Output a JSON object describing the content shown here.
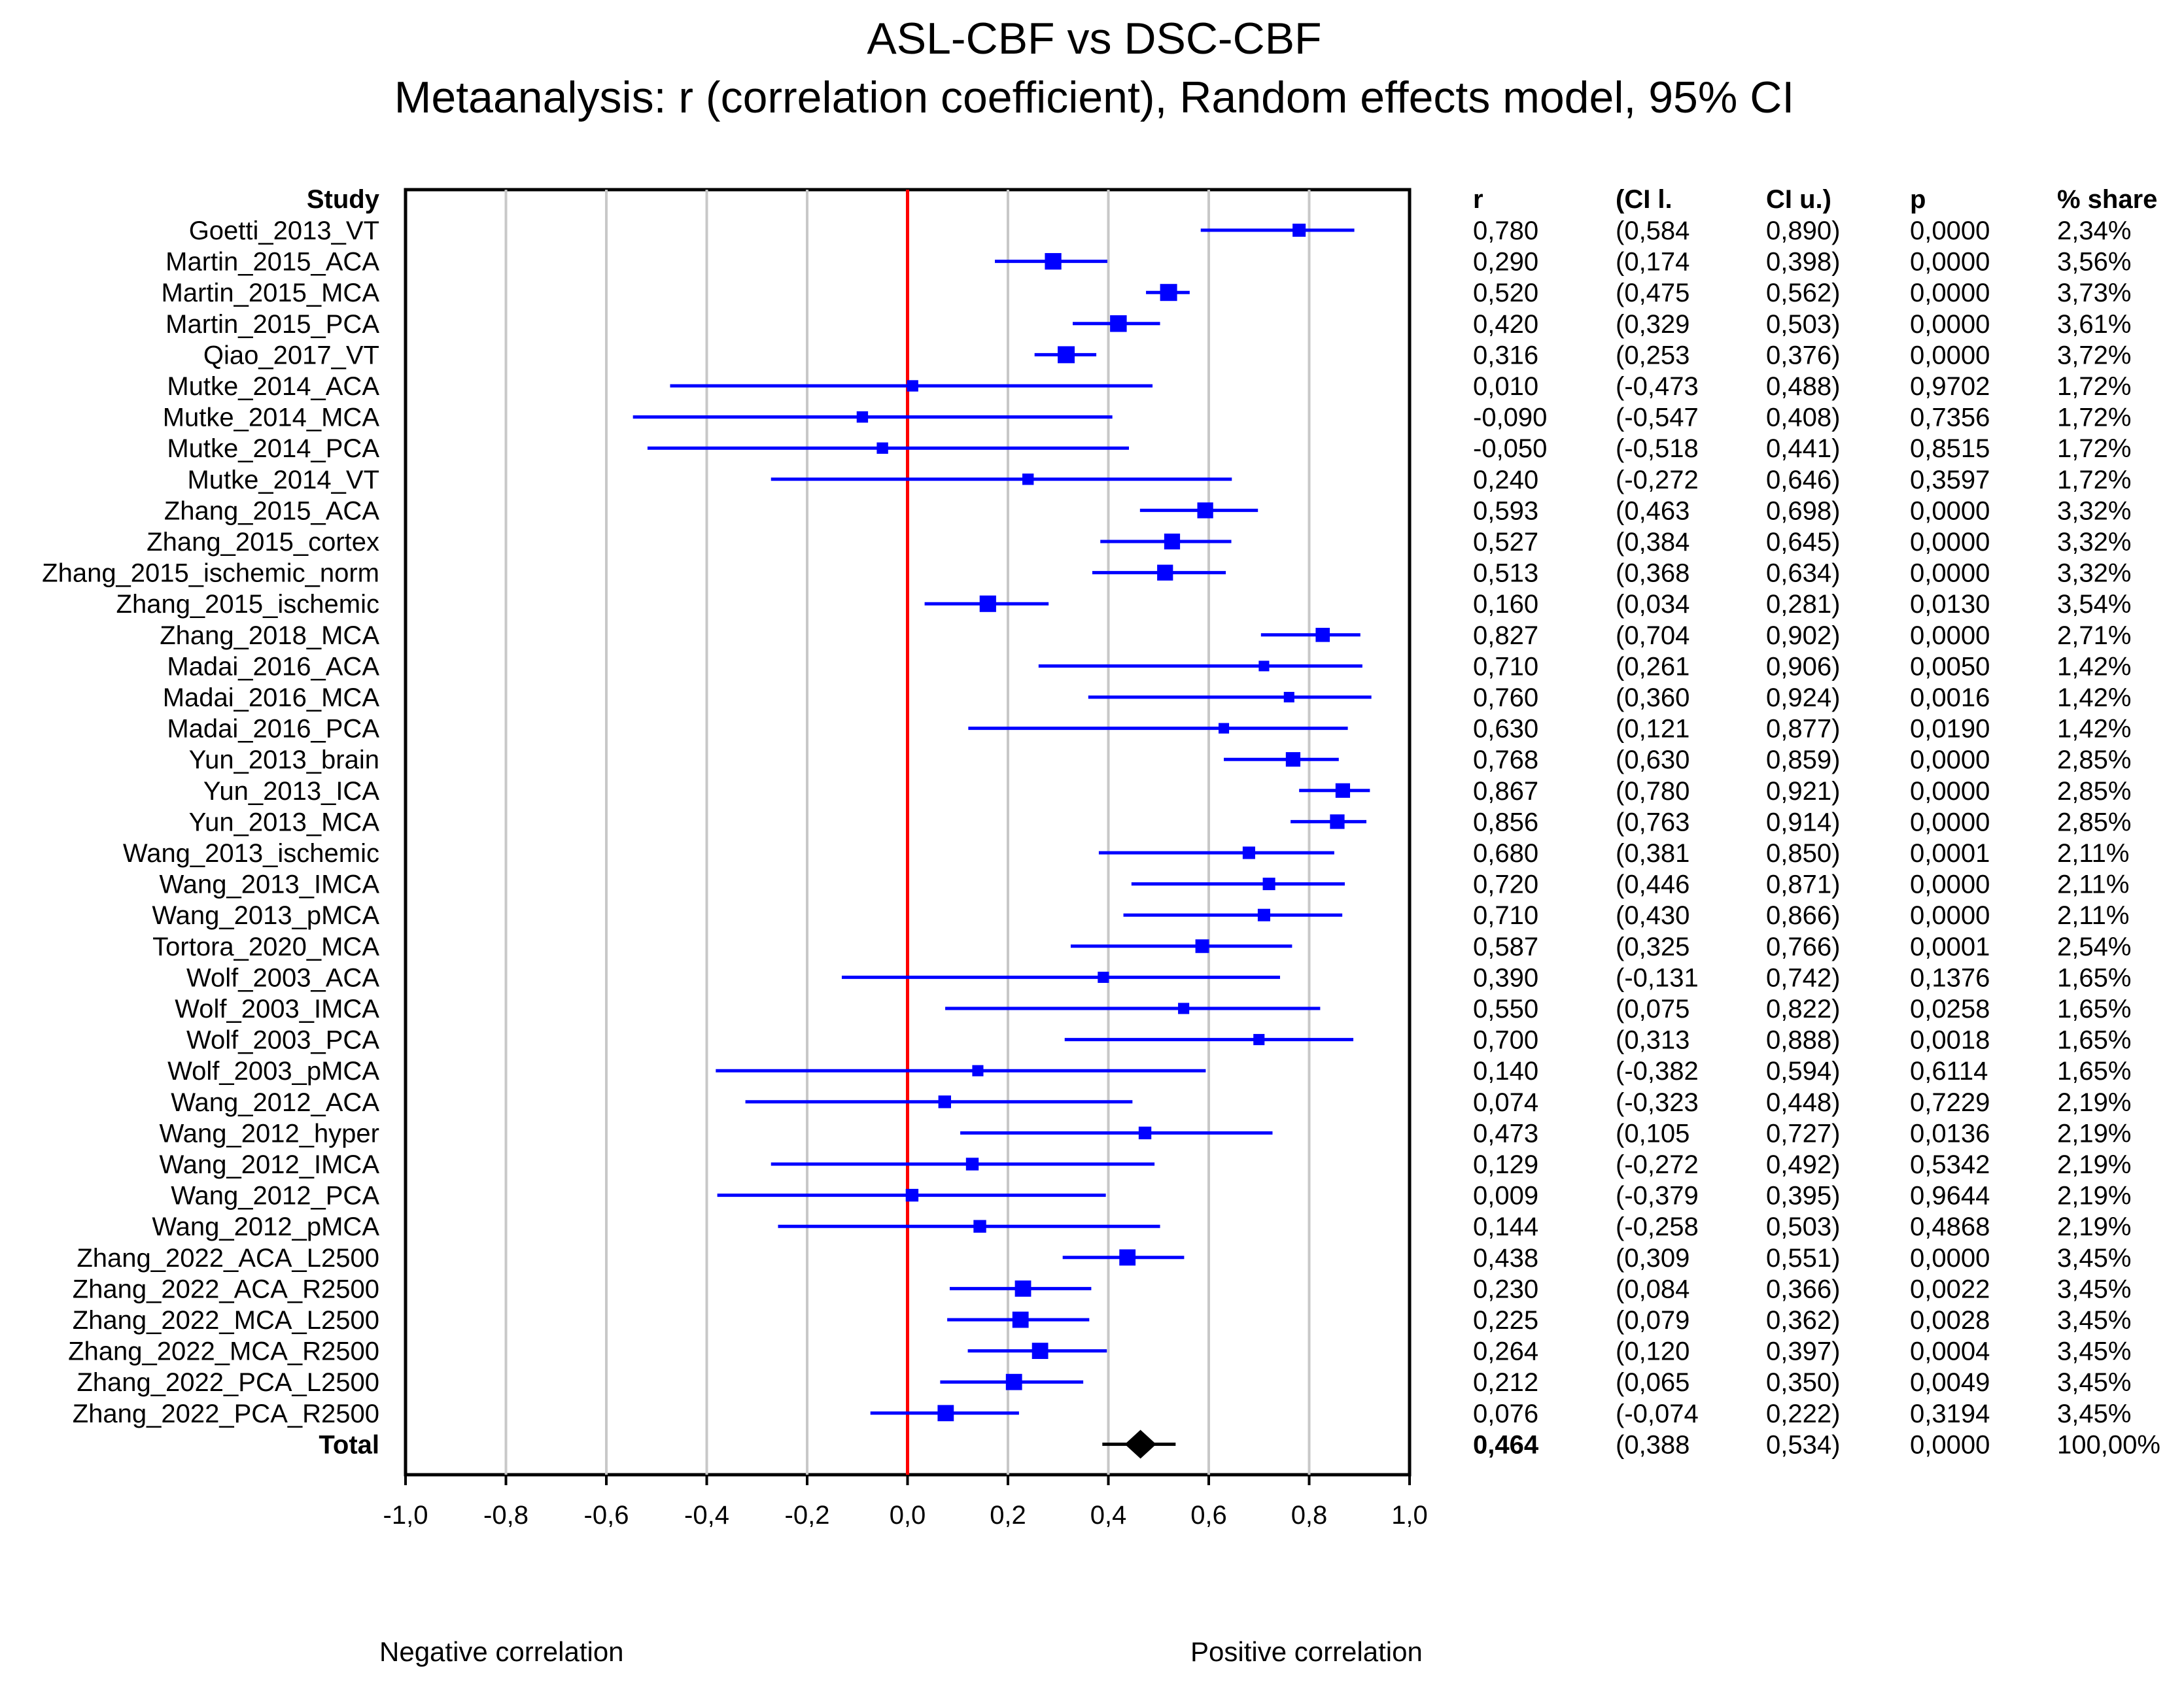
{
  "chart_data": {
    "type": "forest",
    "title": "ASL-CBF vs DSC-CBF",
    "subtitle": "Metaanalysis: r (correlation coefficient), Random effects model, 95% CI",
    "study_header": "Study",
    "column_headers": [
      "r",
      "(CI l.",
      "CI u.)",
      "p",
      "% share"
    ],
    "xlim": [
      -1.0,
      1.0
    ],
    "x_ticks": [
      "-1,0",
      "-0,8",
      "-0,6",
      "-0,4",
      "-0,2",
      "0,0",
      "0,2",
      "0,4",
      "0,6",
      "0,8",
      "1,0"
    ],
    "x_tick_values": [
      -1.0,
      -0.8,
      -0.6,
      -0.4,
      -0.2,
      0.0,
      0.2,
      0.4,
      0.6,
      0.8,
      1.0
    ],
    "reference_line": 0.0,
    "negative_label": "Negative correlation",
    "positive_label": "Positive correlation",
    "colors": {
      "ci": "#0000ff",
      "marker": "#0000ff",
      "reference": "#ff0000",
      "grid": "#c8c8c8",
      "total": "#000000"
    },
    "studies": [
      {
        "name": "Goetti_2013_VT",
        "r": 0.78,
        "lo": 0.584,
        "hi": 0.89,
        "share": 2.34,
        "r_txt": "0,780",
        "lo_txt": "(0,584",
        "hi_txt": "0,890)",
        "p_txt": "0,0000",
        "share_txt": "2,34%"
      },
      {
        "name": "Martin_2015_ACA",
        "r": 0.29,
        "lo": 0.174,
        "hi": 0.398,
        "share": 3.56,
        "r_txt": "0,290",
        "lo_txt": "(0,174",
        "hi_txt": "0,398)",
        "p_txt": "0,0000",
        "share_txt": "3,56%"
      },
      {
        "name": "Martin_2015_MCA",
        "r": 0.52,
        "lo": 0.475,
        "hi": 0.562,
        "share": 3.73,
        "r_txt": "0,520",
        "lo_txt": "(0,475",
        "hi_txt": "0,562)",
        "p_txt": "0,0000",
        "share_txt": "3,73%"
      },
      {
        "name": "Martin_2015_PCA",
        "r": 0.42,
        "lo": 0.329,
        "hi": 0.503,
        "share": 3.61,
        "r_txt": "0,420",
        "lo_txt": "(0,329",
        "hi_txt": "0,503)",
        "p_txt": "0,0000",
        "share_txt": "3,61%"
      },
      {
        "name": "Qiao_2017_VT",
        "r": 0.316,
        "lo": 0.253,
        "hi": 0.376,
        "share": 3.72,
        "r_txt": "0,316",
        "lo_txt": "(0,253",
        "hi_txt": "0,376)",
        "p_txt": "0,0000",
        "share_txt": "3,72%"
      },
      {
        "name": "Mutke_2014_ACA",
        "r": 0.01,
        "lo": -0.473,
        "hi": 0.488,
        "share": 1.72,
        "r_txt": "0,010",
        "lo_txt": "(-0,473",
        "hi_txt": "0,488)",
        "p_txt": "0,9702",
        "share_txt": "1,72%"
      },
      {
        "name": "Mutke_2014_MCA",
        "r": -0.09,
        "lo": -0.547,
        "hi": 0.408,
        "share": 1.72,
        "r_txt": "-0,090",
        "lo_txt": "(-0,547",
        "hi_txt": "0,408)",
        "p_txt": "0,7356",
        "share_txt": "1,72%"
      },
      {
        "name": "Mutke_2014_PCA",
        "r": -0.05,
        "lo": -0.518,
        "hi": 0.441,
        "share": 1.72,
        "r_txt": "-0,050",
        "lo_txt": "(-0,518",
        "hi_txt": "0,441)",
        "p_txt": "0,8515",
        "share_txt": "1,72%"
      },
      {
        "name": "Mutke_2014_VT",
        "r": 0.24,
        "lo": -0.272,
        "hi": 0.646,
        "share": 1.72,
        "r_txt": "0,240",
        "lo_txt": "(-0,272",
        "hi_txt": "0,646)",
        "p_txt": "0,3597",
        "share_txt": "1,72%"
      },
      {
        "name": "Zhang_2015_ACA",
        "r": 0.593,
        "lo": 0.463,
        "hi": 0.698,
        "share": 3.32,
        "r_txt": "0,593",
        "lo_txt": "(0,463",
        "hi_txt": "0,698)",
        "p_txt": "0,0000",
        "share_txt": "3,32%"
      },
      {
        "name": "Zhang_2015_cortex",
        "r": 0.527,
        "lo": 0.384,
        "hi": 0.645,
        "share": 3.32,
        "r_txt": "0,527",
        "lo_txt": "(0,384",
        "hi_txt": "0,645)",
        "p_txt": "0,0000",
        "share_txt": "3,32%"
      },
      {
        "name": "Zhang_2015_ischemic_norm",
        "r": 0.513,
        "lo": 0.368,
        "hi": 0.634,
        "share": 3.32,
        "r_txt": "0,513",
        "lo_txt": "(0,368",
        "hi_txt": "0,634)",
        "p_txt": "0,0000",
        "share_txt": "3,32%"
      },
      {
        "name": "Zhang_2015_ischemic",
        "r": 0.16,
        "lo": 0.034,
        "hi": 0.281,
        "share": 3.54,
        "r_txt": "0,160",
        "lo_txt": "(0,034",
        "hi_txt": "0,281)",
        "p_txt": "0,0130",
        "share_txt": "3,54%"
      },
      {
        "name": "Zhang_2018_MCA",
        "r": 0.827,
        "lo": 0.704,
        "hi": 0.902,
        "share": 2.71,
        "r_txt": "0,827",
        "lo_txt": "(0,704",
        "hi_txt": "0,902)",
        "p_txt": "0,0000",
        "share_txt": "2,71%"
      },
      {
        "name": "Madai_2016_ACA",
        "r": 0.71,
        "lo": 0.261,
        "hi": 0.906,
        "share": 1.42,
        "r_txt": "0,710",
        "lo_txt": "(0,261",
        "hi_txt": "0,906)",
        "p_txt": "0,0050",
        "share_txt": "1,42%"
      },
      {
        "name": "Madai_2016_MCA",
        "r": 0.76,
        "lo": 0.36,
        "hi": 0.924,
        "share": 1.42,
        "r_txt": "0,760",
        "lo_txt": "(0,360",
        "hi_txt": "0,924)",
        "p_txt": "0,0016",
        "share_txt": "1,42%"
      },
      {
        "name": "Madai_2016_PCA",
        "r": 0.63,
        "lo": 0.121,
        "hi": 0.877,
        "share": 1.42,
        "r_txt": "0,630",
        "lo_txt": "(0,121",
        "hi_txt": "0,877)",
        "p_txt": "0,0190",
        "share_txt": "1,42%"
      },
      {
        "name": "Yun_2013_brain",
        "r": 0.768,
        "lo": 0.63,
        "hi": 0.859,
        "share": 2.85,
        "r_txt": "0,768",
        "lo_txt": "(0,630",
        "hi_txt": "0,859)",
        "p_txt": "0,0000",
        "share_txt": "2,85%"
      },
      {
        "name": "Yun_2013_ICA",
        "r": 0.867,
        "lo": 0.78,
        "hi": 0.921,
        "share": 2.85,
        "r_txt": "0,867",
        "lo_txt": "(0,780",
        "hi_txt": "0,921)",
        "p_txt": "0,0000",
        "share_txt": "2,85%"
      },
      {
        "name": "Yun_2013_MCA",
        "r": 0.856,
        "lo": 0.763,
        "hi": 0.914,
        "share": 2.85,
        "r_txt": "0,856",
        "lo_txt": "(0,763",
        "hi_txt": "0,914)",
        "p_txt": "0,0000",
        "share_txt": "2,85%"
      },
      {
        "name": "Wang_2013_ischemic",
        "r": 0.68,
        "lo": 0.381,
        "hi": 0.85,
        "share": 2.11,
        "r_txt": "0,680",
        "lo_txt": "(0,381",
        "hi_txt": "0,850)",
        "p_txt": "0,0001",
        "share_txt": "2,11%"
      },
      {
        "name": "Wang_2013_IMCA",
        "r": 0.72,
        "lo": 0.446,
        "hi": 0.871,
        "share": 2.11,
        "r_txt": "0,720",
        "lo_txt": "(0,446",
        "hi_txt": "0,871)",
        "p_txt": "0,0000",
        "share_txt": "2,11%"
      },
      {
        "name": "Wang_2013_pMCA",
        "r": 0.71,
        "lo": 0.43,
        "hi": 0.866,
        "share": 2.11,
        "r_txt": "0,710",
        "lo_txt": "(0,430",
        "hi_txt": "0,866)",
        "p_txt": "0,0000",
        "share_txt": "2,11%"
      },
      {
        "name": "Tortora_2020_MCA",
        "r": 0.587,
        "lo": 0.325,
        "hi": 0.766,
        "share": 2.54,
        "r_txt": "0,587",
        "lo_txt": "(0,325",
        "hi_txt": "0,766)",
        "p_txt": "0,0001",
        "share_txt": "2,54%"
      },
      {
        "name": "Wolf_2003_ACA",
        "r": 0.39,
        "lo": -0.131,
        "hi": 0.742,
        "share": 1.65,
        "r_txt": "0,390",
        "lo_txt": "(-0,131",
        "hi_txt": "0,742)",
        "p_txt": "0,1376",
        "share_txt": "1,65%"
      },
      {
        "name": "Wolf_2003_IMCA",
        "r": 0.55,
        "lo": 0.075,
        "hi": 0.822,
        "share": 1.65,
        "r_txt": "0,550",
        "lo_txt": "(0,075",
        "hi_txt": "0,822)",
        "p_txt": "0,0258",
        "share_txt": "1,65%"
      },
      {
        "name": "Wolf_2003_PCA",
        "r": 0.7,
        "lo": 0.313,
        "hi": 0.888,
        "share": 1.65,
        "r_txt": "0,700",
        "lo_txt": "(0,313",
        "hi_txt": "0,888)",
        "p_txt": "0,0018",
        "share_txt": "1,65%"
      },
      {
        "name": "Wolf_2003_pMCA",
        "r": 0.14,
        "lo": -0.382,
        "hi": 0.594,
        "share": 1.65,
        "r_txt": "0,140",
        "lo_txt": "(-0,382",
        "hi_txt": "0,594)",
        "p_txt": "0,6114",
        "share_txt": "1,65%"
      },
      {
        "name": "Wang_2012_ACA",
        "r": 0.074,
        "lo": -0.323,
        "hi": 0.448,
        "share": 2.19,
        "r_txt": "0,074",
        "lo_txt": "(-0,323",
        "hi_txt": "0,448)",
        "p_txt": "0,7229",
        "share_txt": "2,19%"
      },
      {
        "name": "Wang_2012_hyper",
        "r": 0.473,
        "lo": 0.105,
        "hi": 0.727,
        "share": 2.19,
        "r_txt": "0,473",
        "lo_txt": "(0,105",
        "hi_txt": "0,727)",
        "p_txt": "0,0136",
        "share_txt": "2,19%"
      },
      {
        "name": "Wang_2012_IMCA",
        "r": 0.129,
        "lo": -0.272,
        "hi": 0.492,
        "share": 2.19,
        "r_txt": "0,129",
        "lo_txt": "(-0,272",
        "hi_txt": "0,492)",
        "p_txt": "0,5342",
        "share_txt": "2,19%"
      },
      {
        "name": "Wang_2012_PCA",
        "r": 0.009,
        "lo": -0.379,
        "hi": 0.395,
        "share": 2.19,
        "r_txt": "0,009",
        "lo_txt": "(-0,379",
        "hi_txt": "0,395)",
        "p_txt": "0,9644",
        "share_txt": "2,19%"
      },
      {
        "name": "Wang_2012_pMCA",
        "r": 0.144,
        "lo": -0.258,
        "hi": 0.503,
        "share": 2.19,
        "r_txt": "0,144",
        "lo_txt": "(-0,258",
        "hi_txt": "0,503)",
        "p_txt": "0,4868",
        "share_txt": "2,19%"
      },
      {
        "name": "Zhang_2022_ACA_L2500",
        "r": 0.438,
        "lo": 0.309,
        "hi": 0.551,
        "share": 3.45,
        "r_txt": "0,438",
        "lo_txt": "(0,309",
        "hi_txt": "0,551)",
        "p_txt": "0,0000",
        "share_txt": "3,45%"
      },
      {
        "name": "Zhang_2022_ACA_R2500",
        "r": 0.23,
        "lo": 0.084,
        "hi": 0.366,
        "share": 3.45,
        "r_txt": "0,230",
        "lo_txt": "(0,084",
        "hi_txt": "0,366)",
        "p_txt": "0,0022",
        "share_txt": "3,45%"
      },
      {
        "name": "Zhang_2022_MCA_L2500",
        "r": 0.225,
        "lo": 0.079,
        "hi": 0.362,
        "share": 3.45,
        "r_txt": "0,225",
        "lo_txt": "(0,079",
        "hi_txt": "0,362)",
        "p_txt": "0,0028",
        "share_txt": "3,45%"
      },
      {
        "name": "Zhang_2022_MCA_R2500",
        "r": 0.264,
        "lo": 0.12,
        "hi": 0.397,
        "share": 3.45,
        "r_txt": "0,264",
        "lo_txt": "(0,120",
        "hi_txt": "0,397)",
        "p_txt": "0,0004",
        "share_txt": "3,45%"
      },
      {
        "name": "Zhang_2022_PCA_L2500",
        "r": 0.212,
        "lo": 0.065,
        "hi": 0.35,
        "share": 3.45,
        "r_txt": "0,212",
        "lo_txt": "(0,065",
        "hi_txt": "0,350)",
        "p_txt": "0,0049",
        "share_txt": "3,45%"
      },
      {
        "name": "Zhang_2022_PCA_R2500",
        "r": 0.076,
        "lo": -0.074,
        "hi": 0.222,
        "share": 3.45,
        "r_txt": "0,076",
        "lo_txt": "(-0,074",
        "hi_txt": "0,222)",
        "p_txt": "0,3194",
        "share_txt": "3,45%"
      }
    ],
    "total": {
      "name": "Total",
      "r": 0.464,
      "lo": 0.388,
      "hi": 0.534,
      "r_txt": "0,464",
      "lo_txt": "(0,388",
      "hi_txt": "0,534)",
      "p_txt": "0,0000",
      "share_txt": "100,00%"
    }
  }
}
